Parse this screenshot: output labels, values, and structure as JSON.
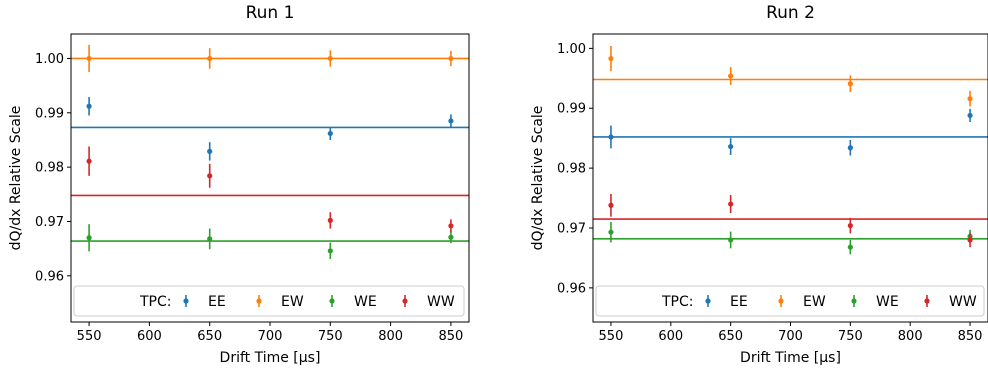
{
  "chart_data": [
    {
      "type": "scatter",
      "title": "Run 1",
      "xlabel": "Drift Time [μs]",
      "ylabel": "dQ/dx Relative Scale",
      "xlim": [
        535,
        865
      ],
      "ylim": [
        0.9515,
        1.0045
      ],
      "xticks": [
        550,
        600,
        650,
        700,
        750,
        800,
        850
      ],
      "yticks": [
        0.96,
        0.97,
        0.98,
        0.99,
        1.0
      ],
      "ytick_labels": [
        "0.96",
        "0.97",
        "0.98",
        "0.99",
        "1.00"
      ],
      "grid": false,
      "legend": {
        "position": "bottom",
        "title": "TPC:"
      },
      "series": [
        {
          "name": "EE",
          "color": "#1f77b4",
          "x": [
            550,
            650,
            750,
            850
          ],
          "y": [
            0.9912,
            0.9829,
            0.9862,
            0.9885
          ],
          "yerr": [
            0.0017,
            0.0017,
            0.0012,
            0.0012
          ],
          "fit": 0.9873
        },
        {
          "name": "EW",
          "color": "#ff7f0e",
          "x": [
            550,
            650,
            750,
            850
          ],
          "y": [
            1.0,
            1.0,
            1.0,
            1.0
          ],
          "yerr": [
            0.0025,
            0.0019,
            0.0015,
            0.0014
          ],
          "fit": 1.0
        },
        {
          "name": "WE",
          "color": "#2ca02c",
          "x": [
            550,
            650,
            750,
            850
          ],
          "y": [
            0.967,
            0.9668,
            0.9646,
            0.9671
          ],
          "yerr": [
            0.0025,
            0.0019,
            0.0015,
            0.0011
          ],
          "fit": 0.9664
        },
        {
          "name": "WW",
          "color": "#d62728",
          "x": [
            550,
            650,
            750,
            850
          ],
          "y": [
            0.9811,
            0.9784,
            0.9702,
            0.9692
          ],
          "yerr": [
            0.0027,
            0.0022,
            0.0015,
            0.0012
          ],
          "fit": 0.9748
        }
      ]
    },
    {
      "type": "scatter",
      "title": "Run 2",
      "xlabel": "Drift Time [μs]",
      "ylabel": "dQ/dx Relative Scale",
      "xlim": [
        535,
        865
      ],
      "ylim": [
        0.9543,
        1.0024
      ],
      "xticks": [
        550,
        600,
        650,
        700,
        750,
        800,
        850
      ],
      "yticks": [
        0.96,
        0.97,
        0.98,
        0.99,
        1.0
      ],
      "ytick_labels": [
        "0.96",
        "0.97",
        "0.98",
        "0.99",
        "1.00"
      ],
      "grid": false,
      "legend": {
        "position": "bottom",
        "title": "TPC:"
      },
      "series": [
        {
          "name": "EE",
          "color": "#1f77b4",
          "x": [
            550,
            650,
            750,
            850
          ],
          "y": [
            0.9852,
            0.9836,
            0.9834,
            0.9888
          ],
          "yerr": [
            0.0019,
            0.0014,
            0.0013,
            0.0011
          ],
          "fit": 0.9852
        },
        {
          "name": "EW",
          "color": "#ff7f0e",
          "x": [
            550,
            650,
            750,
            850
          ],
          "y": [
            0.9983,
            0.9954,
            0.9941,
            0.9916
          ],
          "yerr": [
            0.0021,
            0.0015,
            0.0014,
            0.0013
          ],
          "fit": 0.9948
        },
        {
          "name": "WE",
          "color": "#2ca02c",
          "x": [
            550,
            650,
            750,
            850
          ],
          "y": [
            0.9693,
            0.968,
            0.9668,
            0.9686
          ],
          "yerr": [
            0.0017,
            0.0014,
            0.0012,
            0.0011
          ],
          "fit": 0.9682
        },
        {
          "name": "WW",
          "color": "#d62728",
          "x": [
            550,
            650,
            750,
            850
          ],
          "y": [
            0.9738,
            0.974,
            0.9704,
            0.968
          ],
          "yerr": [
            0.0019,
            0.0015,
            0.0013,
            0.0012
          ],
          "fit": 0.9715
        }
      ]
    }
  ]
}
